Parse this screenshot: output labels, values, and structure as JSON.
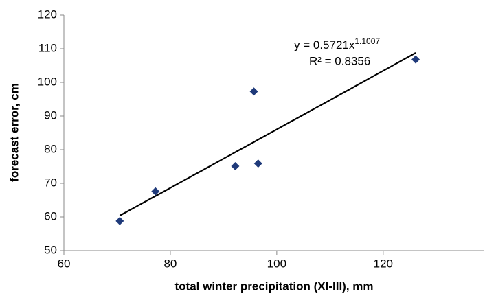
{
  "chart_data": {
    "type": "scatter",
    "x_label": "total winter precipitation (XI-III), mm",
    "y_label": "forecast error, cm",
    "annotations": {
      "equation": "y = 0.5721x",
      "exponent": "1.1007",
      "r_squared": "R² = 0.8356"
    },
    "x": [
      70.5,
      77.2,
      92.2,
      96.5,
      95.7,
      126.1
    ],
    "values": [
      58.8,
      67.6,
      75.1,
      75.9,
      97.3,
      106.8
    ],
    "color": "#1f3a7a",
    "xlim": [
      60,
      139
    ],
    "xticks": [
      60,
      80,
      100,
      120
    ],
    "ylim": [
      50,
      120
    ],
    "yticks": [
      50,
      60,
      70,
      80,
      90,
      100,
      110,
      120
    ],
    "grid": false
  }
}
